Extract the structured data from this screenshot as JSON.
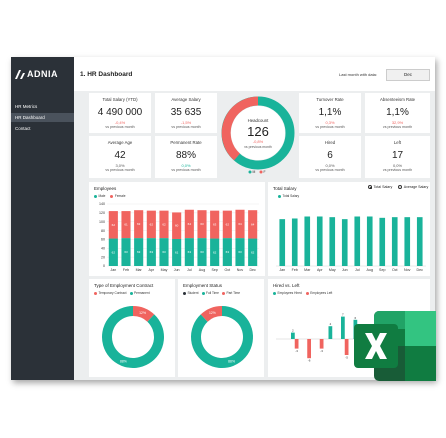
{
  "colors": {
    "teal": "#19b39a",
    "red": "#f0645f",
    "dark": "#2b3138",
    "excel_green": "#1d6f42"
  },
  "brand": {
    "name": "ADNIA"
  },
  "sidebar": {
    "items": [
      {
        "label": "HR Metrics"
      },
      {
        "label": "HR Dashboard"
      },
      {
        "label": "Contact"
      }
    ]
  },
  "header": {
    "title": "1. HR Dashboard",
    "last_month_label": "Last month with data:",
    "last_month_value": "Dec"
  },
  "kpis": [
    {
      "title": "Total Salary (YTD)",
      "value": "4 490 000",
      "change": "-0,4%",
      "sub": "vs previous month"
    },
    {
      "title": "Average Salary",
      "value": "35 635",
      "change": "-1,5%",
      "sub": "vs previous month"
    },
    {
      "title": "Turnover Rate",
      "value": "1,1%",
      "change": "0,3%",
      "sub": "vs previous month"
    },
    {
      "title": "Absenteeism Rate",
      "value": "1,1%",
      "change": "32,9%",
      "sub": "vs previous month"
    },
    {
      "title": "Average Age",
      "value": "42",
      "change": "3,0%",
      "sub": "vs previous month"
    },
    {
      "title": "Permanent Rate",
      "value": "88%",
      "change": "0,0%",
      "sub": "vs previous month"
    },
    {
      "title": "Hired",
      "value": "6",
      "change": "0,0%",
      "sub": "vs previous month"
    },
    {
      "title": "Left",
      "value": "17",
      "change": "0,0%",
      "sub": "vs previous month"
    }
  ],
  "headcount": {
    "title": "Headcount",
    "value": "126",
    "change": "-0,8%",
    "sub": "vs previous month",
    "legend_m": "M",
    "legend_f": "F"
  },
  "charts": {
    "employees": {
      "title": "Employees",
      "legend": [
        "Male",
        "Female"
      ]
    },
    "salary": {
      "title": "Total Salary",
      "legend": "Total Salary",
      "radio_total": "Total Salary",
      "radio_avg": "Average Salary"
    },
    "contract": {
      "title": "Type of Employment Contract",
      "legend": [
        "Temporary Contract",
        "Permanent"
      ]
    },
    "status": {
      "title": "Employment Status",
      "legend": [
        "Student",
        "Full Time",
        "Part Time"
      ]
    },
    "hired_left": {
      "title": "Hired vs. Left",
      "legend": [
        "Employees Hired",
        "Employees Left"
      ]
    }
  },
  "chart_data": [
    {
      "type": "bar",
      "title": "Employees",
      "categories": [
        "Jan",
        "Feb",
        "Mar",
        "Apr",
        "May",
        "Jun",
        "Jul",
        "Aug",
        "Sep",
        "Oct",
        "Nov",
        "Dec"
      ],
      "series": [
        {
          "name": "Male",
          "values": [
            62,
            63,
            63,
            63,
            63,
            61,
            63,
            63,
            62,
            63,
            63,
            62
          ]
        },
        {
          "name": "Female",
          "values": [
            62,
            61,
            63,
            62,
            62,
            60,
            64,
            63,
            63,
            62,
            64,
            64
          ]
        }
      ],
      "yticks": [
        0,
        20,
        40,
        60,
        80,
        100,
        120,
        140
      ],
      "ylim": [
        0,
        140
      ]
    },
    {
      "type": "bar",
      "title": "Total Salary",
      "categories": [
        "Jan",
        "Feb",
        "Mar",
        "Apr",
        "May",
        "Jun",
        "Jul",
        "Aug",
        "Sep",
        "Oct",
        "Nov",
        "Dec"
      ],
      "series": [
        {
          "name": "Total Salary",
          "values": [
            0.71,
            0.72,
            0.75,
            0.75,
            0.74,
            0.71,
            0.75,
            0.75,
            0.73,
            0.74,
            0.74,
            0.74
          ]
        }
      ],
      "ylim": [
        0,
        1
      ]
    },
    {
      "type": "pie",
      "title": "Type of Employment Contract",
      "labels": [
        "Temporary Contract",
        "Permanent"
      ],
      "values": [
        12,
        88
      ],
      "data_labels": [
        "12%",
        "88%"
      ]
    },
    {
      "type": "pie",
      "title": "Employment Status",
      "labels": [
        "Student",
        "Full Time",
        "Part Time"
      ],
      "values": [
        0,
        88,
        12
      ],
      "data_labels": [
        "",
        "88%",
        "12%"
      ]
    },
    {
      "type": "bar",
      "title": "Hired vs. Left",
      "categories": [
        "Jan",
        "Feb",
        "Mar",
        "Apr",
        "May",
        "Jun",
        "Jul",
        "Aug",
        "Sep",
        "Oct",
        "Nov",
        "Dec"
      ],
      "series": [
        {
          "name": "Employees Hired",
          "values": [
            0,
            2,
            0,
            0,
            4,
            7,
            6,
            0,
            4,
            4,
            0,
            0
          ]
        },
        {
          "name": "Employees Left",
          "values": [
            0,
            -3,
            -6,
            -3,
            0,
            -5,
            0,
            -4,
            -3,
            -2,
            -6,
            0
          ]
        }
      ]
    }
  ]
}
